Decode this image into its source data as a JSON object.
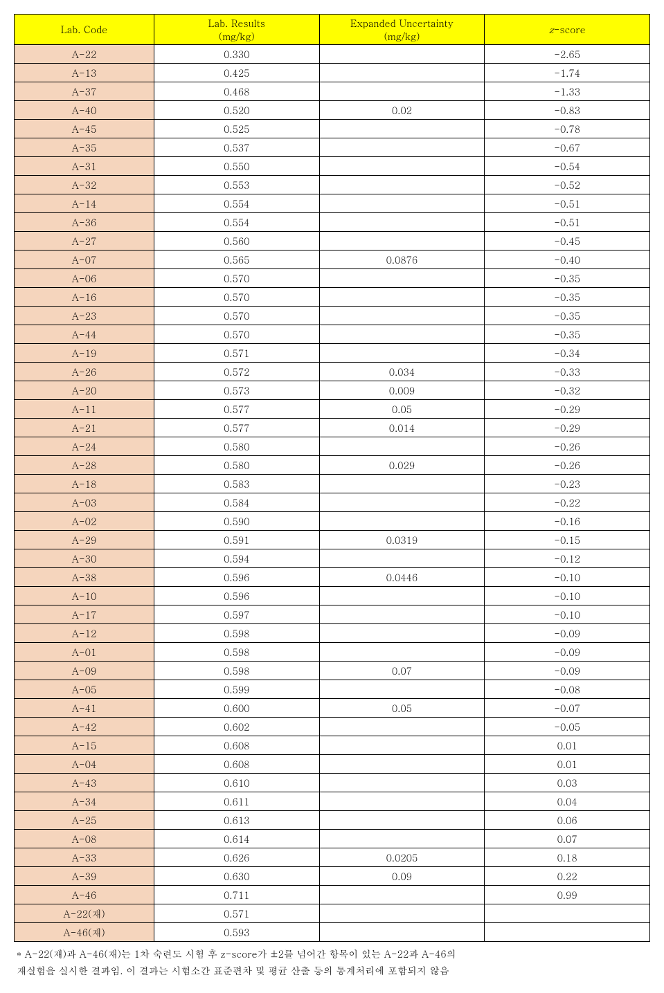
{
  "table": {
    "columns": [
      {
        "label": "Lab. Code",
        "width": "22%"
      },
      {
        "label": "Lab. Results\n(mg/kg)",
        "width": "26%"
      },
      {
        "label": "Expanded Uncertainty\n(mg/kg)",
        "width": "26%"
      },
      {
        "label": "z-score",
        "width": "26%",
        "italic_prefix": "z",
        "suffix": "-score"
      }
    ],
    "header_bg": "#ffff00",
    "labcode_bg": "#f5d5bd",
    "border_color": "#000000",
    "font_size_pt": 14,
    "rows": [
      [
        "A-22",
        "0.330",
        "",
        "-2.65"
      ],
      [
        "A-13",
        "0.425",
        "",
        "-1.74"
      ],
      [
        "A-37",
        "0.468",
        "",
        "-1.33"
      ],
      [
        "A-40",
        "0.520",
        "0.02",
        "-0.83"
      ],
      [
        "A-45",
        "0.525",
        "",
        "-0.78"
      ],
      [
        "A-35",
        "0.537",
        "",
        "-0.67"
      ],
      [
        "A-31",
        "0.550",
        "",
        "-0.54"
      ],
      [
        "A-32",
        "0.553",
        "",
        "-0.52"
      ],
      [
        "A-14",
        "0.554",
        "",
        "-0.51"
      ],
      [
        "A-36",
        "0.554",
        "",
        "-0.51"
      ],
      [
        "A-27",
        "0.560",
        "",
        "-0.45"
      ],
      [
        "A-07",
        "0.565",
        "0.0876",
        "-0.40"
      ],
      [
        "A-06",
        "0.570",
        "",
        "-0.35"
      ],
      [
        "A-16",
        "0.570",
        "",
        "-0.35"
      ],
      [
        "A-23",
        "0.570",
        "",
        "-0.35"
      ],
      [
        "A-44",
        "0.570",
        "",
        "-0.35"
      ],
      [
        "A-19",
        "0.571",
        "",
        "-0.34"
      ],
      [
        "A-26",
        "0.572",
        "0.034",
        "-0.33"
      ],
      [
        "A-20",
        "0.573",
        "0.009",
        "-0.32"
      ],
      [
        "A-11",
        "0.577",
        "0.05",
        "-0.29"
      ],
      [
        "A-21",
        "0.577",
        "0.014",
        "-0.29"
      ],
      [
        "A-24",
        "0.580",
        "",
        "-0.26"
      ],
      [
        "A-28",
        "0.580",
        "0.029",
        "-0.26"
      ],
      [
        "A-18",
        "0.583",
        "",
        "-0.23"
      ],
      [
        "A-03",
        "0.584",
        "",
        "-0.22"
      ],
      [
        "A-02",
        "0.590",
        "",
        "-0.16"
      ],
      [
        "A-29",
        "0.591",
        "0.0319",
        "-0.15"
      ],
      [
        "A-30",
        "0.594",
        "",
        "-0.12"
      ],
      [
        "A-38",
        "0.596",
        "0.0446",
        "-0.10"
      ],
      [
        "A-10",
        "0.596",
        "",
        "-0.10"
      ],
      [
        "A-17",
        "0.597",
        "",
        "-0.10"
      ],
      [
        "A-12",
        "0.598",
        "",
        "-0.09"
      ],
      [
        "A-01",
        "0.598",
        "",
        "-0.09"
      ],
      [
        "A-09",
        "0.598",
        "0.07",
        "-0.09"
      ],
      [
        "A-05",
        "0.599",
        "",
        "-0.08"
      ],
      [
        "A-41",
        "0.600",
        "0.05",
        "-0.07"
      ],
      [
        "A-42",
        "0.602",
        "",
        "-0.05"
      ],
      [
        "A-15",
        "0.608",
        "",
        "0.01"
      ],
      [
        "A-04",
        "0.608",
        "",
        "0.01"
      ],
      [
        "A-43",
        "0.610",
        "",
        "0.03"
      ],
      [
        "A-34",
        "0.611",
        "",
        "0.04"
      ],
      [
        "A-25",
        "0.613",
        "",
        "0.06"
      ],
      [
        "A-08",
        "0.614",
        "",
        "0.07"
      ],
      [
        "A-33",
        "0.626",
        "0.0205",
        "0.18"
      ],
      [
        "A-39",
        "0.630",
        "0.09",
        "0.22"
      ],
      [
        "A-46",
        "0.711",
        "",
        "0.99"
      ],
      [
        "A-22(재)",
        "0.571",
        "",
        ""
      ],
      [
        "A-46(재)",
        "0.593",
        "",
        ""
      ]
    ]
  },
  "footnote": {
    "line1": "* A-22(재)과 A-46(재)는 1차 숙련도 시험 후 z-score가 ±2를 넘어간 항목이 있는 A-22과 A-46의",
    "line2": "재실험을 실시한 결과임. 이 결과는 시험소간 표준편차 및 평균 산출 등의 통계처리에 포함되지 않음"
  }
}
